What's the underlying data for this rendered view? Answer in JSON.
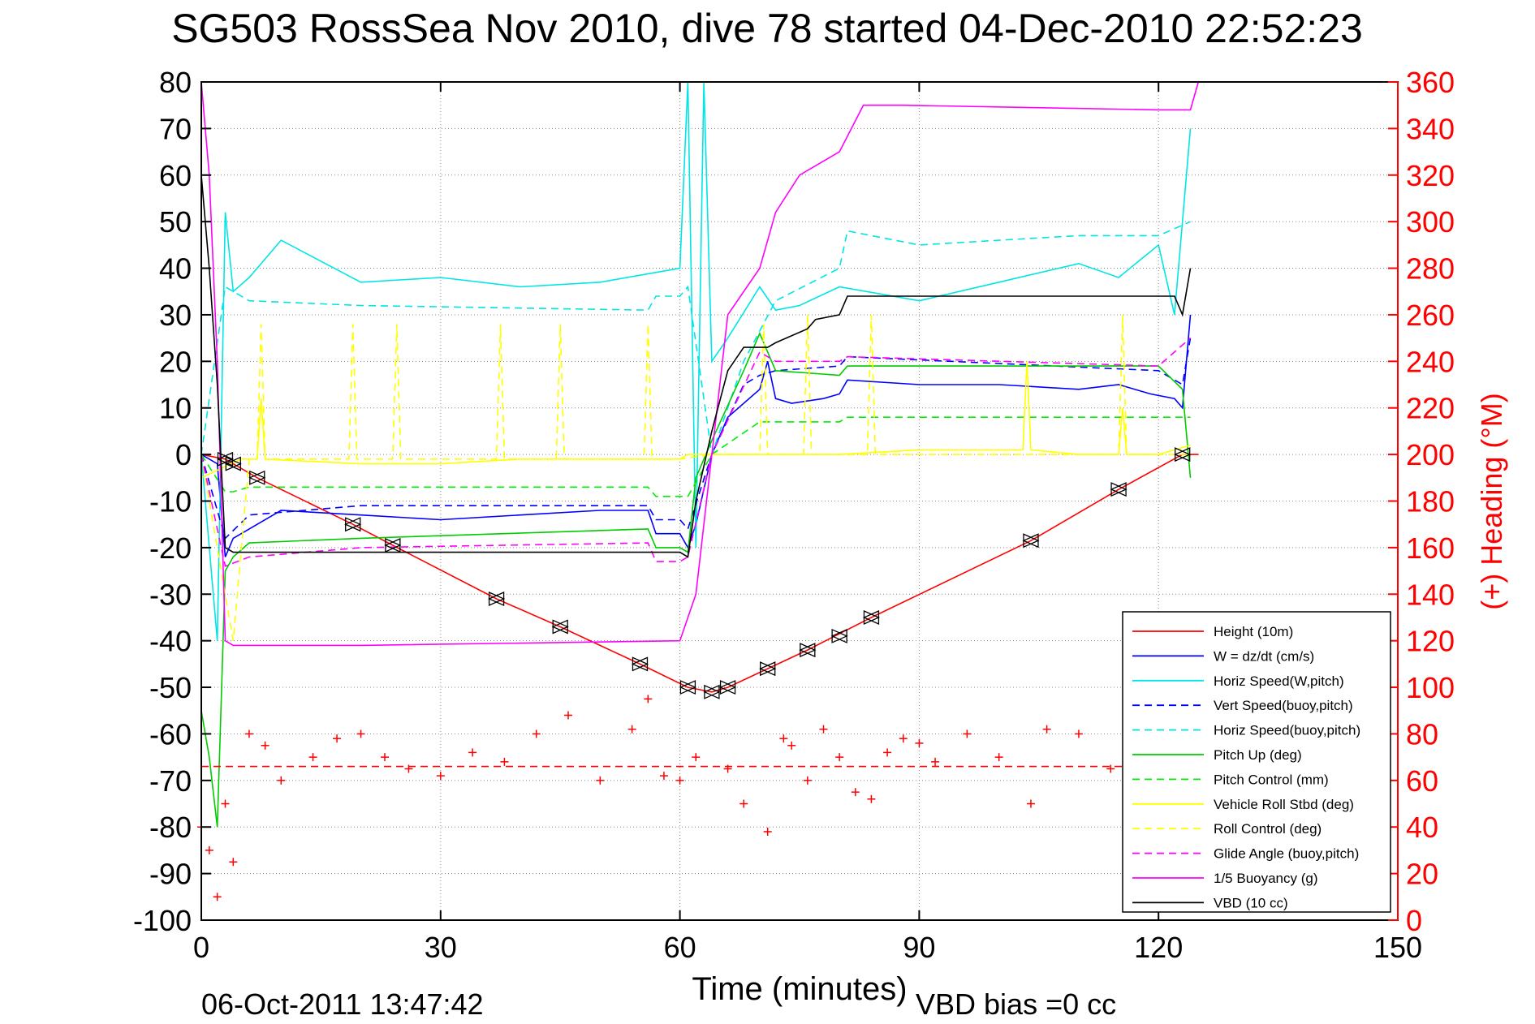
{
  "chart_data": {
    "type": "line",
    "title": "SG503 RossSea Nov 2010, dive 78 started 04-Dec-2010 22:52:23",
    "xlabel": "Time (minutes)",
    "ylabel_right": "(+) Heading (°M)",
    "footer_left": "06-Oct-2011 13:47:42",
    "footer_right": "VBD bias =0 cc",
    "xlim": [
      0,
      150
    ],
    "ylim": [
      -100,
      80
    ],
    "y2lim": [
      0,
      360
    ],
    "grid": true,
    "legend_position": "bottom-right",
    "x_ticks": [
      "0",
      "30",
      "60",
      "90",
      "120",
      "150"
    ],
    "y_ticks": [
      "80",
      "70",
      "60",
      "50",
      "40",
      "30",
      "20",
      "10",
      "0",
      "-10",
      "-20",
      "-30",
      "-40",
      "-50",
      "-60",
      "-70",
      "-80",
      "-90",
      "-100"
    ],
    "y2_ticks": [
      "360",
      "340",
      "320",
      "300",
      "280",
      "260",
      "240",
      "220",
      "200",
      "180",
      "160",
      "140",
      "120",
      "100",
      "80",
      "60",
      "40",
      "20",
      "0"
    ],
    "colors": {
      "axis": "#000000",
      "right_axis": "#ff0000",
      "grid": "#888888"
    },
    "series": [
      {
        "name": "Height (10m)",
        "color": "#ff0000",
        "dash": "solid",
        "x": [
          0,
          3,
          4,
          7,
          19,
          24,
          37,
          45,
          55,
          61,
          64,
          66,
          71,
          76,
          84,
          104,
          115,
          123,
          125
        ],
        "y": [
          0,
          -1,
          -2,
          -5,
          -15,
          -19.5,
          -31,
          -37,
          -45,
          -50,
          -51,
          -50,
          -46,
          -42,
          -35,
          -18.5,
          -7.5,
          0,
          0
        ]
      },
      {
        "name": "W = dz/dt (cm/s)",
        "color": "#0000ff",
        "dash": "solid",
        "x": [
          0,
          2,
          3,
          4,
          6,
          10,
          20,
          30,
          40,
          50,
          56,
          57,
          60,
          61,
          62,
          64,
          66,
          70,
          71,
          72,
          74,
          78,
          80,
          81,
          90,
          100,
          110,
          115,
          119,
          122,
          123,
          124
        ],
        "y": [
          0,
          -2,
          -22,
          -18,
          -16,
          -12,
          -13,
          -14,
          -13,
          -12,
          -12,
          -17,
          -17,
          -20,
          -15,
          0,
          8,
          14,
          20,
          12,
          11,
          12,
          13,
          16,
          15,
          15,
          14,
          15,
          13,
          12,
          10,
          30
        ]
      },
      {
        "name": "Horiz Speed(W,pitch)",
        "color": "#00e5e5",
        "dash": "solid",
        "x": [
          0,
          2,
          3,
          4,
          6,
          10,
          20,
          30,
          40,
          50,
          60,
          61,
          62,
          63,
          64,
          66,
          70,
          72,
          75,
          80,
          90,
          100,
          110,
          115,
          120,
          122,
          124
        ],
        "y": [
          0,
          -40,
          52,
          35,
          38,
          46,
          37,
          38,
          36,
          37,
          40,
          80,
          -20,
          80,
          20,
          25,
          36,
          31,
          32,
          36,
          33,
          37,
          41,
          38,
          45,
          30,
          70
        ]
      },
      {
        "name": "Vert Speed(buoy,pitch)",
        "color": "#0000ff",
        "dash": "dashed",
        "x": [
          0,
          3,
          6,
          20,
          56,
          57,
          60,
          61,
          64,
          68,
          70,
          72,
          80,
          81,
          120,
          123,
          124
        ],
        "y": [
          0,
          -18,
          -13,
          -11,
          -11,
          -14,
          -14,
          -16,
          0,
          15,
          17,
          18,
          19,
          21,
          18,
          15,
          25
        ]
      },
      {
        "name": "Horiz Speed(buoy,pitch)",
        "color": "#00e5e5",
        "dash": "dashed",
        "x": [
          0,
          3,
          6,
          20,
          56,
          57,
          60,
          61,
          64,
          68,
          72,
          80,
          81,
          90,
          100,
          110,
          120,
          124
        ],
        "y": [
          0,
          36,
          33,
          32,
          31,
          34,
          34,
          36,
          0,
          20,
          33,
          40,
          48,
          45,
          46,
          47,
          47,
          50
        ]
      },
      {
        "name": "Pitch Up (deg)",
        "color": "#00cc00",
        "dash": "solid",
        "x": [
          0,
          1,
          2,
          3,
          4,
          6,
          20,
          56,
          57,
          60,
          61,
          62,
          64,
          68,
          70,
          72,
          80,
          81,
          120,
          123,
          124
        ],
        "y": [
          -55,
          -65,
          -80,
          -25,
          -22,
          -19,
          -18,
          -16,
          -20,
          -20,
          -21,
          -5,
          3,
          18,
          26,
          18,
          17,
          19,
          19,
          14,
          -5
        ]
      },
      {
        "name": "Pitch Control (mm)",
        "color": "#00ee00",
        "dash": "dashed",
        "x": [
          0,
          3,
          4,
          6,
          56,
          57,
          60,
          61,
          64,
          70,
          72,
          80,
          81,
          120,
          124
        ],
        "y": [
          0,
          -8,
          -8,
          -7,
          -7,
          -9,
          -9,
          -9,
          0,
          7,
          7,
          7,
          8,
          8,
          8
        ]
      },
      {
        "name": "Vehicle Roll Stbd (deg)",
        "color": "#ffff00",
        "dash": "solid",
        "x": [
          0,
          5,
          7,
          7.5,
          8,
          20,
          30,
          40,
          50,
          60,
          61,
          64,
          70,
          80,
          90,
          100,
          103,
          103.5,
          104,
          110,
          115,
          115.5,
          116,
          120,
          124
        ],
        "y": [
          -5,
          -1,
          -1,
          12,
          -1,
          -2,
          -2,
          -1,
          -1,
          -1,
          0,
          0,
          0,
          0,
          1,
          1,
          1,
          20,
          1,
          0,
          0,
          10,
          0,
          0,
          2
        ]
      },
      {
        "name": "Roll Control (deg)",
        "color": "#ffff00",
        "dash": "dashed",
        "x": [
          0,
          4,
          6,
          7,
          7.5,
          8,
          18.5,
          19,
          19.5,
          24,
          24.5,
          25,
          37,
          37.5,
          38,
          44.5,
          45,
          45.5,
          55.5,
          56,
          56.5,
          60,
          64,
          70,
          70.5,
          71,
          75.5,
          76,
          76.5,
          83.5,
          84,
          84.5,
          115,
          115.5,
          116,
          124
        ],
        "y": [
          0,
          -40,
          -1,
          -1,
          28,
          -1,
          -1,
          28,
          -1,
          -1,
          28,
          -1,
          -1,
          28,
          -1,
          -1,
          28,
          -1,
          -1,
          28,
          -1,
          -1,
          0,
          0,
          28,
          0,
          0,
          30,
          0,
          0,
          30,
          0,
          0,
          30,
          0,
          0
        ]
      },
      {
        "name": "Glide Angle (buoy,pitch)",
        "color": "#ff00ff",
        "dash": "dashed",
        "x": [
          0,
          3,
          6,
          20,
          56,
          57,
          60,
          61,
          64,
          70,
          72,
          80,
          81,
          120,
          124
        ],
        "y": [
          0,
          -24,
          -22,
          -20,
          -19,
          -23,
          -23,
          -22,
          0,
          22,
          20,
          20,
          21,
          19,
          25
        ]
      },
      {
        "name": "1/5 Buoyancy (g)",
        "color": "#ff00ff",
        "dash": "solid",
        "x": [
          0,
          1,
          2,
          3,
          4,
          20,
          60,
          62,
          66,
          70,
          72,
          75,
          80,
          83,
          88,
          120,
          124,
          125
        ],
        "y": [
          80,
          60,
          20,
          -40,
          -41,
          -41,
          -40,
          -30,
          30,
          40,
          52,
          60,
          65,
          75,
          75,
          74,
          74,
          80
        ]
      },
      {
        "name": "VBD (10 cc)",
        "color": "#000000",
        "dash": "solid",
        "x": [
          0,
          1,
          2,
          3,
          4,
          30,
          60,
          61,
          62,
          64,
          66,
          68,
          71,
          72,
          76,
          77,
          80,
          81,
          100,
          120,
          122,
          123,
          124
        ],
        "y": [
          60,
          40,
          15,
          -20,
          -21,
          -21,
          -21,
          -22,
          -10,
          5,
          18,
          23,
          23,
          24,
          27,
          29,
          30,
          34,
          34,
          34,
          34,
          30,
          40
        ]
      },
      {
        "name": "Heading",
        "color": "#ff0000",
        "dash": "none",
        "axis": "right",
        "x": [
          0,
          1,
          2,
          3,
          4,
          6,
          8,
          10,
          14,
          17,
          20,
          23,
          26,
          30,
          34,
          38,
          42,
          46,
          50,
          54,
          56,
          58,
          60,
          62,
          66,
          68,
          71,
          73,
          74,
          76,
          78,
          80,
          82,
          84,
          86,
          88,
          90,
          92,
          96,
          100,
          104,
          106,
          110,
          114,
          116,
          120,
          124
        ],
        "y": [
          40,
          30,
          10,
          50,
          25,
          80,
          75,
          60,
          70,
          78,
          80,
          70,
          65,
          62,
          72,
          68,
          80,
          88,
          60,
          82,
          95,
          62,
          60,
          70,
          65,
          50,
          38,
          78,
          75,
          60,
          82,
          70,
          55,
          52,
          72,
          78,
          76,
          68,
          80,
          70,
          50,
          82,
          80,
          65,
          50,
          60,
          65
        ]
      },
      {
        "name": "Heading mean",
        "color": "#ff0000",
        "dash": "dashed",
        "axis": "right",
        "x": [
          0,
          124
        ],
        "y": [
          66,
          66
        ]
      },
      {
        "name": "Depth markers",
        "color": "#000000",
        "dash": "none",
        "x": [
          3,
          4,
          7,
          19,
          24,
          37,
          45,
          55,
          61,
          64,
          66,
          71,
          76,
          80,
          84,
          104,
          115,
          123
        ],
        "y": [
          -1,
          -2,
          -5,
          -15,
          -19.5,
          -31,
          -37,
          -45,
          -50,
          -51,
          -50,
          -46,
          -42,
          -39,
          -35,
          -18.5,
          -7.5,
          0
        ]
      }
    ]
  }
}
